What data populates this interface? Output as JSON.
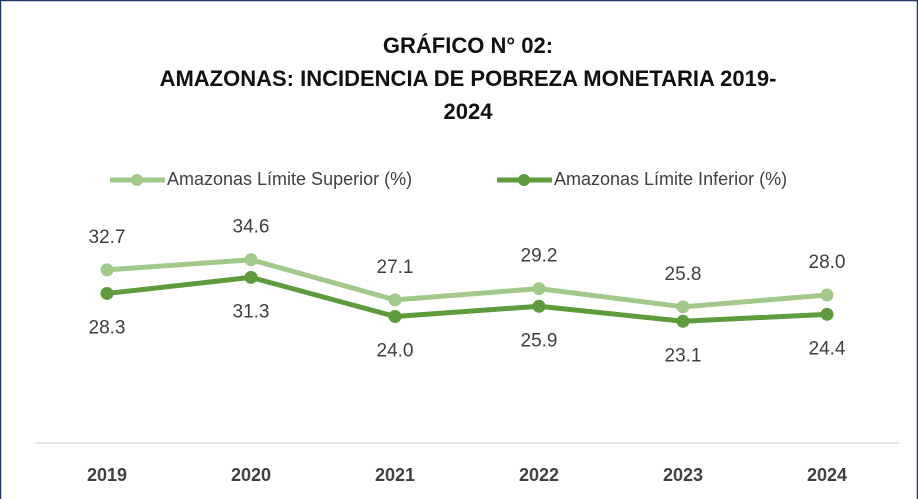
{
  "chart_data": {
    "type": "line",
    "title": [
      "GRÁFICO N° 02:",
      "AMAZONAS: INCIDENCIA DE POBREZA MONETARIA 2019-",
      "2024"
    ],
    "categories": [
      "2019",
      "2020",
      "2021",
      "2022",
      "2023",
      "2024"
    ],
    "series": [
      {
        "name": "Amazonas Límite Superior (%)",
        "color": "#a2c98a",
        "values": [
          32.7,
          34.6,
          27.1,
          29.2,
          25.8,
          28.0
        ],
        "value_labels": [
          "32.7",
          "34.6",
          "27.1",
          "29.2",
          "25.8",
          "28.0"
        ],
        "label_position": "above"
      },
      {
        "name": "Amazonas Límite Inferior (%)",
        "color": "#5e9b3d",
        "values": [
          28.3,
          31.3,
          24.0,
          25.9,
          23.1,
          24.4
        ],
        "value_labels": [
          "28.3",
          "31.3",
          "24.0",
          "25.9",
          "23.1",
          "24.4"
        ],
        "label_position": "below"
      }
    ],
    "ylim": [
      0,
      45
    ],
    "legend": "top"
  }
}
